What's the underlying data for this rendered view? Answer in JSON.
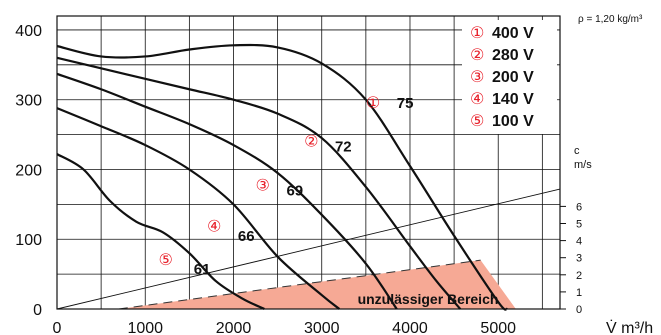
{
  "chart_data": {
    "type": "line",
    "density_note": "ρ = 1,20 kg/m³",
    "xlabel": "V̇ m³/h",
    "xlim": [
      0,
      5700
    ],
    "ylim": [
      0,
      420
    ],
    "x_ticks": [
      0,
      1000,
      2000,
      3000,
      4000,
      5000
    ],
    "y_ticks": [
      0,
      100,
      200,
      300,
      400
    ],
    "velocity_axis": {
      "label_top": "c",
      "label_unit": "m/s",
      "ticks": [
        0,
        1,
        2,
        3,
        4,
        5,
        6
      ]
    },
    "velocity_line_end": [
      5700,
      172
    ],
    "series": [
      {
        "marker": "①",
        "voltage": "400 V",
        "curve_label": "75",
        "points": [
          [
            0,
            377
          ],
          [
            500,
            362
          ],
          [
            1000,
            362
          ],
          [
            1500,
            372
          ],
          [
            2000,
            378
          ],
          [
            2500,
            375
          ],
          [
            3000,
            352
          ],
          [
            3500,
            300
          ],
          [
            4000,
            205
          ],
          [
            4500,
            105
          ],
          [
            5000,
            10
          ],
          [
            5100,
            0
          ]
        ],
        "label_at": [
          3850,
          295
        ],
        "marker_at": [
          3500,
          295
        ]
      },
      {
        "marker": "②",
        "voltage": "280 V",
        "curve_label": "72",
        "points": [
          [
            0,
            360
          ],
          [
            500,
            345
          ],
          [
            1000,
            330
          ],
          [
            1500,
            315
          ],
          [
            2000,
            300
          ],
          [
            2500,
            280
          ],
          [
            3000,
            245
          ],
          [
            3500,
            175
          ],
          [
            4000,
            90
          ],
          [
            4300,
            40
          ],
          [
            4570,
            0
          ]
        ],
        "label_at": [
          3150,
          233
        ],
        "marker_at": [
          2800,
          240
        ]
      },
      {
        "marker": "③",
        "voltage": "200 V",
        "curve_label": "69",
        "points": [
          [
            0,
            337
          ],
          [
            500,
            315
          ],
          [
            1000,
            290
          ],
          [
            1500,
            265
          ],
          [
            2000,
            235
          ],
          [
            2500,
            195
          ],
          [
            3000,
            135
          ],
          [
            3500,
            65
          ],
          [
            3850,
            0
          ]
        ],
        "label_at": [
          2600,
          170
        ],
        "marker_at": [
          2250,
          177
        ]
      },
      {
        "marker": "④",
        "voltage": "140 V",
        "curve_label": "66",
        "points": [
          [
            0,
            288
          ],
          [
            500,
            262
          ],
          [
            1000,
            235
          ],
          [
            1500,
            200
          ],
          [
            2000,
            150
          ],
          [
            2500,
            75
          ],
          [
            3000,
            20
          ],
          [
            3200,
            0
          ]
        ],
        "label_at": [
          2050,
          105
        ],
        "marker_at": [
          1700,
          118
        ]
      },
      {
        "marker": "⑤",
        "voltage": "100 V",
        "curve_label": "61",
        "points": [
          [
            0,
            222
          ],
          [
            300,
            200
          ],
          [
            600,
            155
          ],
          [
            900,
            125
          ],
          [
            1200,
            110
          ],
          [
            1500,
            80
          ],
          [
            1800,
            40
          ],
          [
            2100,
            15
          ],
          [
            2350,
            0
          ]
        ],
        "label_at": [
          1550,
          57
        ],
        "marker_at": [
          1150,
          70
        ]
      }
    ],
    "forbidden_zone": {
      "label": "unzulässiger Bereich",
      "color": "#f6a995",
      "polygon": [
        [
          700,
          0
        ],
        [
          4800,
          70
        ],
        [
          5200,
          0
        ]
      ]
    },
    "legend": [
      {
        "marker": "①",
        "text": "400 V"
      },
      {
        "marker": "②",
        "text": "280 V"
      },
      {
        "marker": "③",
        "text": "200 V"
      },
      {
        "marker": "④",
        "text": "140 V"
      },
      {
        "marker": "⑤",
        "text": "100 V"
      }
    ],
    "legend_position": "top-right",
    "grid": true,
    "colors": {
      "curve": "#111111",
      "marker": "#e8202a",
      "zone": "#f6a995"
    }
  }
}
